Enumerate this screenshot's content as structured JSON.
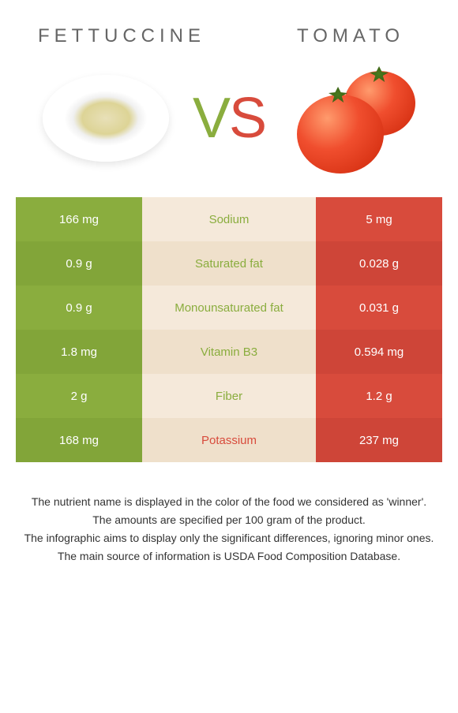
{
  "header": {
    "left": "FETTUCCINE",
    "right": "TOMATO"
  },
  "colors": {
    "left_col": "#8aad3e",
    "right_col": "#d84b3c",
    "mid_alt1": "#f5e9da",
    "mid_alt2": "#efe0cb",
    "left_alt": "#82a539",
    "right_alt": "#ce4538",
    "text_on_color": "#ffffff",
    "mid_text_left": "#8aad3e",
    "mid_text_right": "#d84b3c"
  },
  "rows": [
    {
      "left": "166 mg",
      "mid": "Sodium",
      "right": "5 mg",
      "winner": "left"
    },
    {
      "left": "0.9 g",
      "mid": "Saturated fat",
      "right": "0.028 g",
      "winner": "left"
    },
    {
      "left": "0.9 g",
      "mid": "Monounsaturated fat",
      "right": "0.031 g",
      "winner": "left"
    },
    {
      "left": "1.8 mg",
      "mid": "Vitamin B3",
      "right": "0.594 mg",
      "winner": "left"
    },
    {
      "left": "2 g",
      "mid": "Fiber",
      "right": "1.2 g",
      "winner": "left"
    },
    {
      "left": "168 mg",
      "mid": "Potassium",
      "right": "237 mg",
      "winner": "right"
    }
  ],
  "footer": [
    "The nutrient name is displayed in the color of the food we considered as 'winner'.",
    "The amounts are specified per 100 gram of the product.",
    "The infographic aims to display only the significant differences, ignoring minor ones.",
    "The main source of information is USDA Food Composition Database."
  ]
}
